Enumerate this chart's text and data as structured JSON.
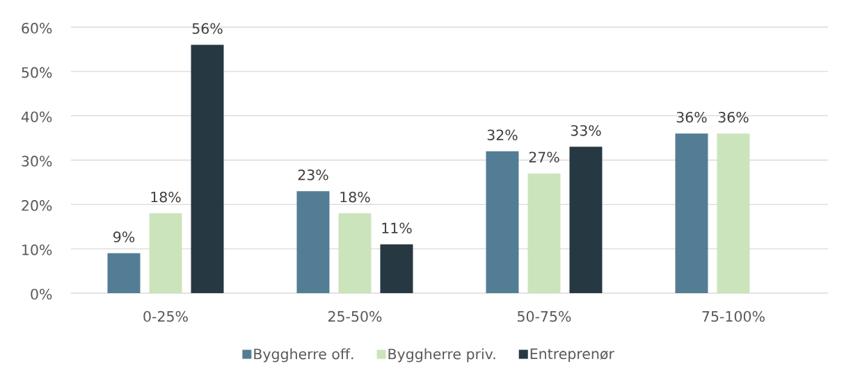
{
  "chart_data": {
    "type": "bar",
    "categories": [
      "0-25%",
      "25-50%",
      "50-75%",
      "75-100%"
    ],
    "series": [
      {
        "name": "Byggherre off.",
        "color": "#537d94",
        "values": [
          9,
          23,
          32,
          36
        ],
        "value_labels": [
          "9%",
          "23%",
          "32%",
          "36%"
        ]
      },
      {
        "name": "Byggherre priv.",
        "color": "#cce4bc",
        "values": [
          18,
          18,
          27,
          36
        ],
        "value_labels": [
          "18%",
          "18%",
          "27%",
          "36%"
        ]
      },
      {
        "name": "Entreprenør",
        "color": "#263842",
        "values": [
          56,
          11,
          33,
          null
        ],
        "value_labels": [
          "56%",
          "11%",
          "33%",
          null
        ]
      }
    ],
    "ylim": [
      0,
      60
    ],
    "yticks": [
      {
        "value": 0,
        "label": "0%"
      },
      {
        "value": 10,
        "label": "10%"
      },
      {
        "value": 20,
        "label": "20%"
      },
      {
        "value": 30,
        "label": "30%"
      },
      {
        "value": 40,
        "label": "40%"
      },
      {
        "value": 50,
        "label": "50%"
      },
      {
        "value": 60,
        "label": "60%"
      }
    ],
    "grid": "y",
    "legend": "bottom"
  }
}
